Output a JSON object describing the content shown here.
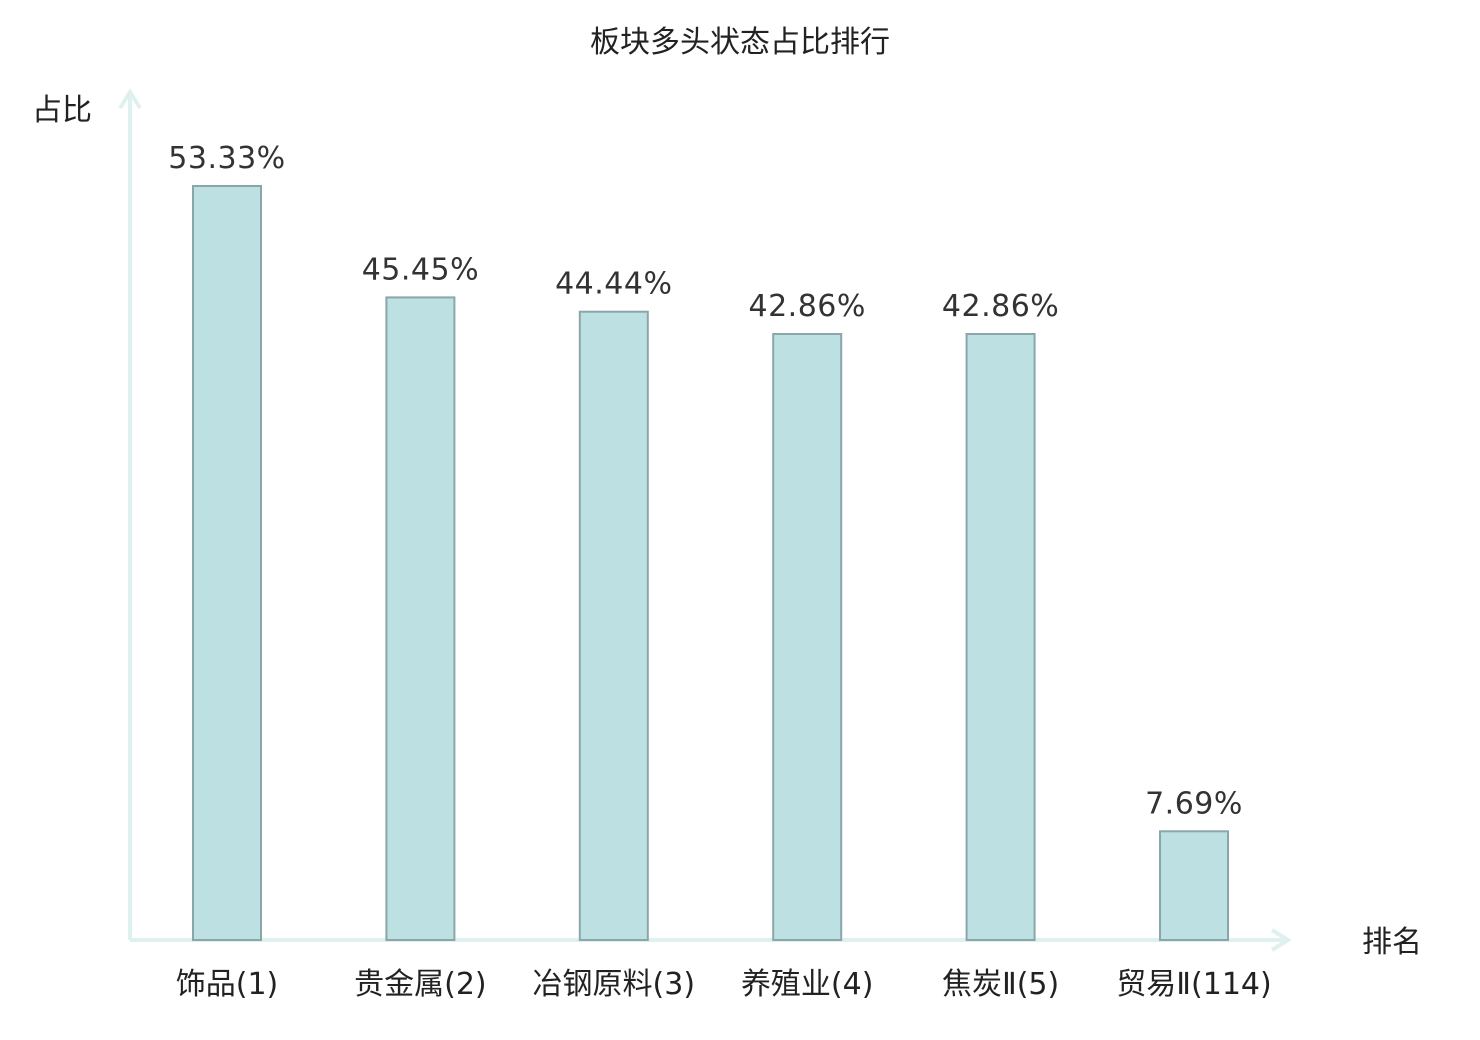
{
  "chart_data": {
    "type": "bar",
    "title": "板块多头状态占比排行",
    "ylabel": "占比",
    "xlabel": "排名",
    "categories": [
      {
        "name": "饰品",
        "rank": "(1)"
      },
      {
        "name": "贵金属",
        "rank": "(2)"
      },
      {
        "name": "冶钢原料",
        "rank": "(3)"
      },
      {
        "name": "养殖业",
        "rank": "(4)"
      },
      {
        "name": "焦炭Ⅱ",
        "rank": "(5)"
      },
      {
        "name": "贸易Ⅱ",
        "rank": "(114)",
        "highlight": true
      }
    ],
    "values": [
      53.33,
      45.45,
      44.44,
      42.86,
      42.86,
      7.69
    ],
    "value_labels": [
      "53.33%",
      "45.45%",
      "44.44%",
      "42.86%",
      "42.86%",
      "7.69%"
    ],
    "ylim": [
      0,
      58
    ],
    "grid": false,
    "colors": {
      "bar_fill": "#bde1e3",
      "bar_stroke": "#8aa6aa",
      "axis": "#dff1ef",
      "highlight_text": "#e0262b",
      "text": "#222222"
    }
  }
}
